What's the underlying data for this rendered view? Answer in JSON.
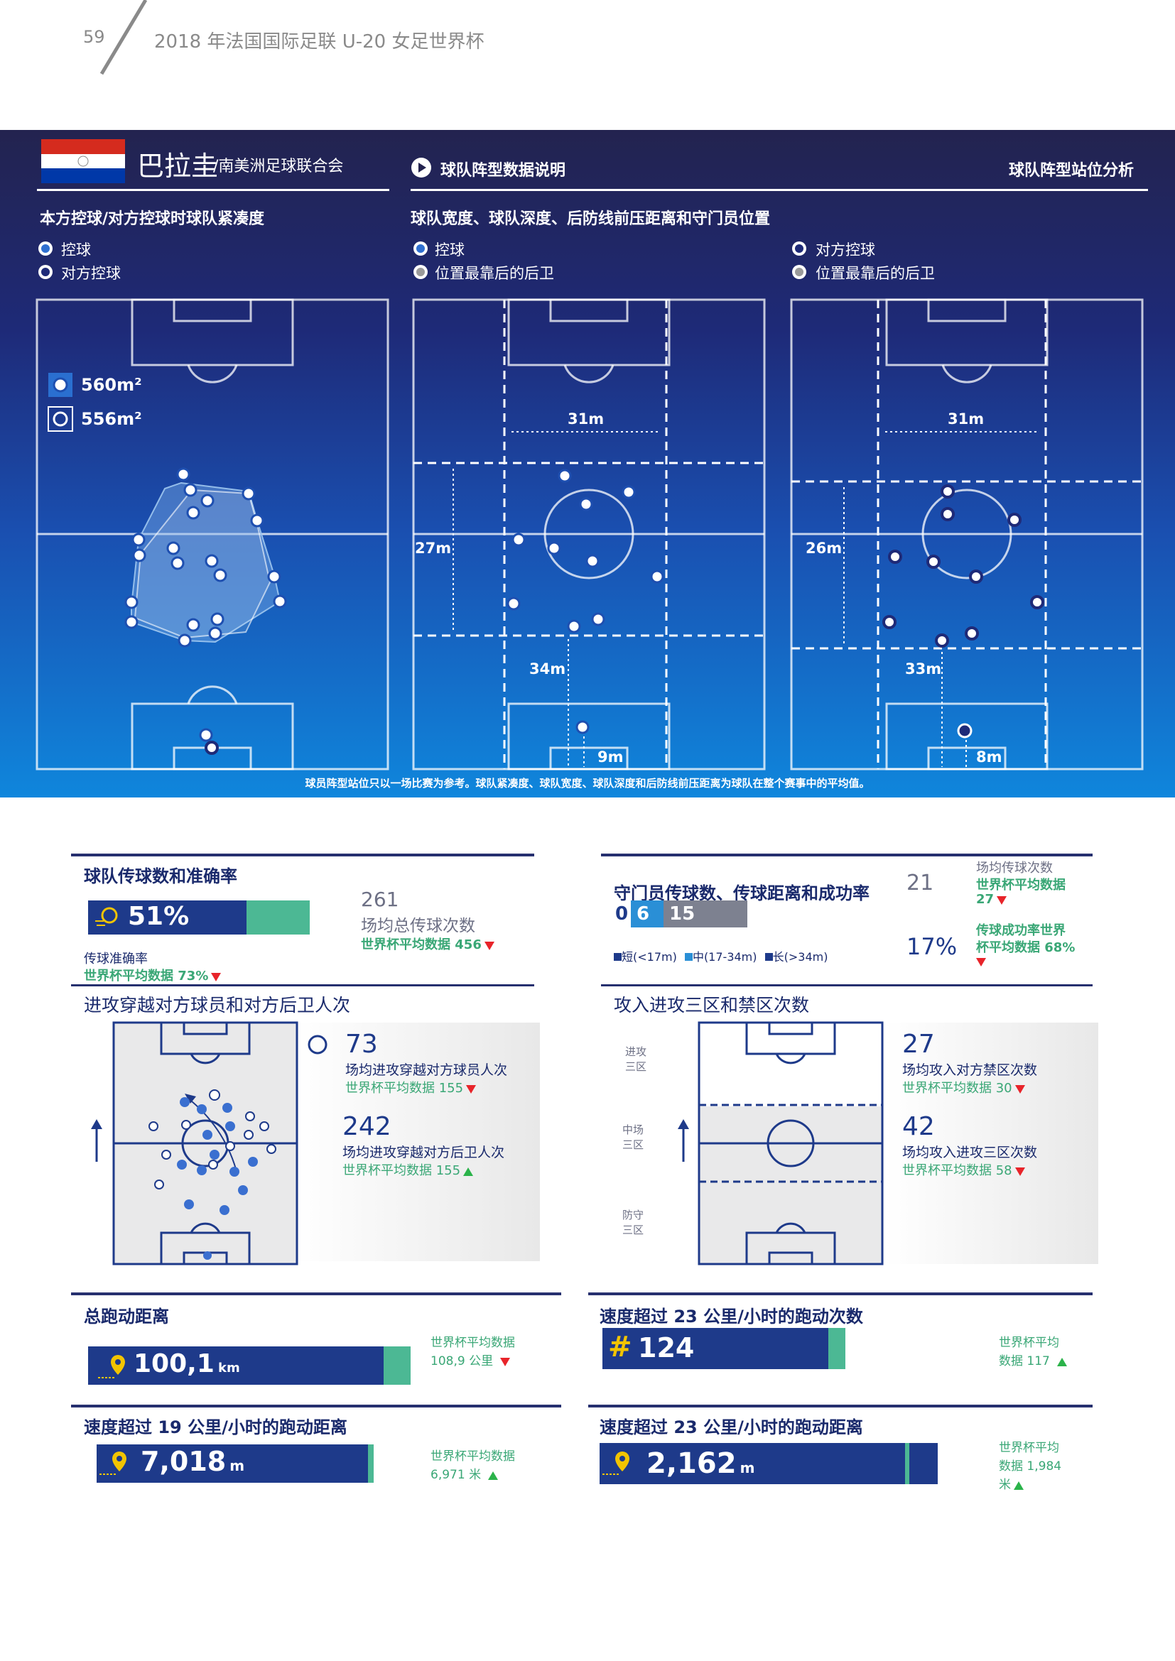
{
  "header": {
    "page_number": "59",
    "title": "2018 年法国国际足联 U-20 女足世界杯"
  },
  "team": {
    "name": "巴拉圭",
    "confederation": "/南美洲足球联合会"
  },
  "band": {
    "explain_link": "球队阵型数据说明",
    "analysis_label": "球队阵型站位分析",
    "compactness_title": "本方控球/对方控球时球队紧凑度",
    "dimension_title": "球队宽度、球队深度、后防线前压距离和守门员位置",
    "legend_possession": "控球",
    "legend_opp_possession": "对方控球",
    "legend_last_defender": "位置最靠后的后卫",
    "area_own": "560m²",
    "area_opp": "556m²",
    "own_width": "31m",
    "own_depth": "27m",
    "own_line_height": "34m",
    "own_gk": "9m",
    "opp_width": "31m",
    "opp_depth": "26m",
    "opp_line_height": "33m",
    "opp_gk": "8m",
    "caption": "球员阵型站位只以一场比赛为参考。球队紧凑度、球队宽度、球队深度和后防线前压距离为球队在整个赛事中的平均值。"
  },
  "passing": {
    "title": "球队传球数和准确率",
    "accuracy": "51%",
    "accuracy_value": 51,
    "accuracy_label": "传球准确率",
    "accuracy_avg": "世界杯平均数据  73%",
    "total": "261",
    "total_label": "场均总传球次数",
    "total_avg": "世界杯平均数据  456"
  },
  "gk": {
    "title": "守门员传球数、传球距离和成功率",
    "short": "0",
    "medium": "6",
    "long": "15",
    "legend_short": "短(<17m)",
    "legend_medium": "中(17-34m)",
    "legend_long": "长(>34m)",
    "passes": "21",
    "passes_label": "场均传球次数",
    "passes_avg_label": "世界杯平均数据",
    "passes_avg": "27",
    "rate": "17%",
    "rate_label": "传球成功率世界",
    "rate_avg": "杯平均数据  68%"
  },
  "breaking": {
    "title": "进攻穿越对方球员和对方后卫人次",
    "players": "73",
    "players_label": "场均进攻穿越对方球员人次",
    "players_avg": "世界杯平均数据 155",
    "defenders": "242",
    "defenders_label": "场均进攻穿越对方后卫人次",
    "defenders_avg": "世界杯平均数据 155"
  },
  "entries": {
    "title": "攻入进攻三区和禁区次数",
    "zone_attack": [
      "进攻",
      "三区"
    ],
    "zone_mid": [
      "中场",
      "三区"
    ],
    "zone_def": [
      "防守",
      "三区"
    ],
    "box": "27",
    "box_label": "场均攻入对方禁区次数",
    "box_avg": "世界杯平均数据 30",
    "third": "42",
    "third_label": "场均攻入进攻三区次数",
    "third_avg": "世界杯平均数据 58"
  },
  "distance": {
    "title": "总跑动距离",
    "value": "100,1",
    "unit": "km",
    "avg_label": "世界杯平均数据",
    "avg": "108,9  公里"
  },
  "sprints": {
    "title": "速度超过 23 公里/小时的跑动次数",
    "value": "124",
    "hash": "#",
    "avg_label": "世界杯平均",
    "avg": "数据  117"
  },
  "dist19": {
    "title": "速度超过 19 公里/小时的跑动距离",
    "value": "7,018",
    "unit": "m",
    "avg_label": "世界杯平均数据",
    "avg": "6,971  米"
  },
  "dist23": {
    "title": "速度超过 23 公里/小时的跑动距离",
    "value": "2,162",
    "unit": "m",
    "avg_label": "世界杯平均",
    "avg_line2": "数据  1,984",
    "avg_line3": "米"
  },
  "colors": {
    "navy": "#1e3a8a",
    "green": "#4cb894",
    "red": "#e8242a",
    "up": "#2bb34a"
  }
}
